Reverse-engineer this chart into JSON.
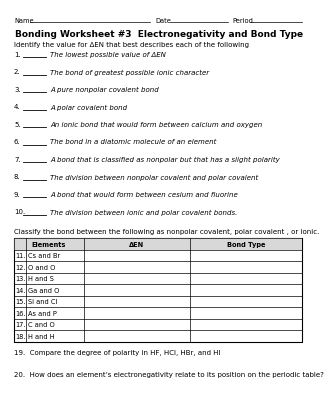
{
  "title": "Bonding Worksheet #3  Electronegativity and Bond Type",
  "header_left": "Name",
  "header_date": "Date",
  "header_period": "Period",
  "identify_instruction": "Identify the value for ΔEN that best describes each of the following",
  "questions": [
    "The lowest possible value of ΔEN",
    "The bond of greatest possible ionic character",
    "A pure nonpolar covalent bond",
    "A polar covalent bond",
    "An ionic bond that would form between calcium and oxygen",
    "The bond in a diatomic molecule of an element",
    "A bond that is classified as nonpolar but that has a slight polarity",
    "The division between nonpolar covalent and polar covalent",
    "A bond that would form between cesium and fluorine",
    "The division between ionic and polar covalent bonds."
  ],
  "classify_instruction": "Classify the bond between the following as nonpolar covalent, polar covalent , or ionic.",
  "table_header": [
    "Elements",
    "ΔEN",
    "Bond Type"
  ],
  "table_rows": [
    [
      "11.",
      "Cs and Br"
    ],
    [
      "12.",
      "O and O"
    ],
    [
      "13.",
      "H and S"
    ],
    [
      "14.",
      "Ga and O"
    ],
    [
      "15.",
      "Si and Cl"
    ],
    [
      "16.",
      "As and P"
    ],
    [
      "17.",
      "C and O"
    ],
    [
      "18.",
      "H and H"
    ]
  ],
  "q19": "19.  Compare the degree of polarity in HF, HCl, HBr, and HI",
  "q20": "20.  How does an element’s electronegativity relate to its position on the periodic table?",
  "bg_color": "#ffffff",
  "text_color": "#000000",
  "line_color": "#000000",
  "fs_header": 4.8,
  "fs_title": 6.5,
  "fs_body": 5.0,
  "fs_table": 4.8
}
